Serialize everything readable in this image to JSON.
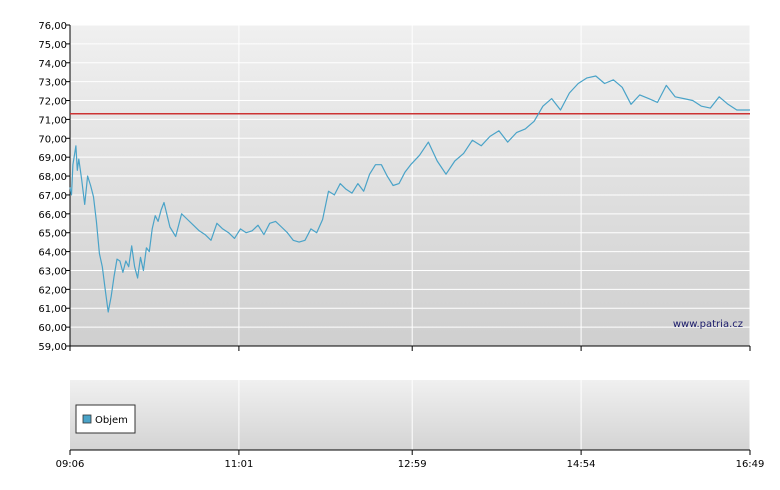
{
  "chart_data": [
    {
      "type": "line",
      "series": [
        {
          "color": "#4aa3c8",
          "x": [
            "09:06",
            "09:07",
            "09:08",
            "09:09",
            "09:10",
            "09:11",
            "09:12",
            "09:14",
            "09:16",
            "09:18",
            "09:20",
            "09:22",
            "09:24",
            "09:26",
            "09:28",
            "09:30",
            "09:32",
            "09:34",
            "09:36",
            "09:38",
            "09:40",
            "09:42",
            "09:44",
            "09:46",
            "09:48",
            "09:50",
            "09:52",
            "09:54",
            "09:56",
            "09:58",
            "10:00",
            "10:02",
            "10:04",
            "10:06",
            "10:08",
            "10:10",
            "10:14",
            "10:18",
            "10:22",
            "10:26",
            "10:30",
            "10:34",
            "10:38",
            "10:42",
            "10:46",
            "10:50",
            "10:54",
            "10:58",
            "11:02",
            "11:06",
            "11:10",
            "11:14",
            "11:18",
            "11:22",
            "11:26",
            "11:30",
            "11:34",
            "11:38",
            "11:42",
            "11:46",
            "11:50",
            "11:54",
            "11:58",
            "12:02",
            "12:06",
            "12:10",
            "12:14",
            "12:18",
            "12:22",
            "12:26",
            "12:30",
            "12:34",
            "12:38",
            "12:42",
            "12:46",
            "12:50",
            "12:54",
            "12:58",
            "13:04",
            "13:10",
            "13:16",
            "13:22",
            "13:28",
            "13:34",
            "13:40",
            "13:46",
            "13:52",
            "13:58",
            "14:04",
            "14:10",
            "14:16",
            "14:22",
            "14:28",
            "14:34",
            "14:40",
            "14:46",
            "14:52",
            "14:58",
            "15:04",
            "15:10",
            "15:16",
            "15:22",
            "15:28",
            "15:34",
            "15:40",
            "15:46",
            "15:52",
            "15:58",
            "16:04",
            "16:10",
            "16:16",
            "16:22",
            "16:28",
            "16:34",
            "16:40",
            "16:46",
            "16:49"
          ],
          "values": [
            67.4,
            67.0,
            68.6,
            69.1,
            69.6,
            68.3,
            68.9,
            67.8,
            66.5,
            68.0,
            67.5,
            66.9,
            65.6,
            63.9,
            63.2,
            62.0,
            60.8,
            61.6,
            62.7,
            63.6,
            63.5,
            62.9,
            63.5,
            63.2,
            64.3,
            63.2,
            62.6,
            63.7,
            63.0,
            64.2,
            64.0,
            65.2,
            65.9,
            65.6,
            66.2,
            66.6,
            65.3,
            64.8,
            66.0,
            65.7,
            65.4,
            65.1,
            64.9,
            64.6,
            65.5,
            65.2,
            65.0,
            64.7,
            65.2,
            65.0,
            65.1,
            65.4,
            64.9,
            65.5,
            65.6,
            65.3,
            65.0,
            64.6,
            64.5,
            64.6,
            65.2,
            65.0,
            65.7,
            67.2,
            67.0,
            67.6,
            67.3,
            67.1,
            67.6,
            67.2,
            68.1,
            68.6,
            68.6,
            68.0,
            67.5,
            67.6,
            68.2,
            68.6,
            69.1,
            69.8,
            68.8,
            68.1,
            68.8,
            69.2,
            69.9,
            69.6,
            70.1,
            70.4,
            69.8,
            70.3,
            70.5,
            70.9,
            71.7,
            72.1,
            71.5,
            72.4,
            72.9,
            73.2,
            73.3,
            72.9,
            73.1,
            72.7,
            71.8,
            72.3,
            72.1,
            71.9,
            72.8,
            72.2,
            72.1,
            72.0,
            71.7,
            71.6,
            72.2,
            71.8,
            71.5,
            71.5,
            71.5
          ]
        }
      ],
      "reference_line": {
        "value": 71.3,
        "color": "#cc3333"
      },
      "yticks": [
        "76,00",
        "75,00",
        "74,00",
        "73,00",
        "72,00",
        "71,00",
        "70,00",
        "69,00",
        "68,00",
        "67,00",
        "66,00",
        "65,00",
        "64,00",
        "63,00",
        "62,00",
        "61,00",
        "60,00",
        "59,00"
      ],
      "ylim": [
        59,
        76
      ],
      "xticks": [
        "09:06",
        "11:01",
        "12:59",
        "14:54",
        "16:49"
      ],
      "xlim": [
        "09:06",
        "16:49"
      ],
      "grid": true,
      "watermark": "www.patria.cz"
    },
    {
      "type": "bar",
      "legend": {
        "label": "Objem",
        "color": "#4aa3c8"
      },
      "series": [
        {
          "name": "Objem",
          "values": []
        }
      ]
    }
  ]
}
